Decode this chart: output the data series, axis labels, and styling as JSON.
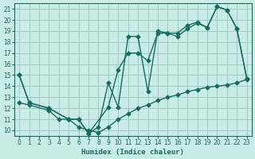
{
  "xlabel": "Humidex (Indice chaleur)",
  "xlim": [
    -0.5,
    23.5
  ],
  "ylim": [
    9.5,
    21.5
  ],
  "yticks": [
    10,
    11,
    12,
    13,
    14,
    15,
    16,
    17,
    18,
    19,
    20,
    21
  ],
  "xticks": [
    0,
    1,
    2,
    3,
    4,
    5,
    6,
    7,
    8,
    9,
    10,
    11,
    12,
    13,
    14,
    15,
    16,
    17,
    18,
    19,
    20,
    21,
    22,
    23
  ],
  "background_color": "#c8ece6",
  "grid_color": "#a0ccc6",
  "line_color": "#1a6b60",
  "line1_x": [
    0,
    1,
    3,
    5,
    6,
    7,
    8,
    9,
    10,
    11,
    12,
    13,
    14,
    15,
    16,
    17,
    18,
    19,
    20,
    21,
    22,
    23
  ],
  "line1_y": [
    15,
    12.5,
    12,
    11,
    11,
    9.7,
    10.3,
    14.3,
    12.1,
    18.5,
    18.5,
    13.5,
    19.0,
    18.8,
    18.8,
    19.5,
    19.8,
    19.3,
    21.2,
    20.9,
    19.2,
    14.7
  ],
  "line2_x": [
    0,
    1,
    3,
    5,
    6,
    7,
    9,
    10,
    11,
    12,
    13,
    14,
    15,
    16,
    17,
    18,
    19,
    20,
    21,
    22,
    23
  ],
  "line2_y": [
    15,
    12.5,
    12,
    11,
    11,
    9.7,
    12.1,
    15.5,
    17.0,
    17.0,
    16.3,
    18.8,
    18.8,
    18.5,
    19.2,
    19.7,
    19.3,
    21.2,
    20.9,
    19.2,
    14.7
  ],
  "line3_x": [
    0,
    1,
    3,
    4,
    5,
    6,
    7,
    8,
    9,
    10,
    11,
    12,
    13,
    14,
    15,
    16,
    17,
    18,
    19,
    20,
    21,
    22,
    23
  ],
  "line3_y": [
    12.5,
    12.3,
    11.8,
    11.0,
    11.0,
    10.3,
    10.0,
    9.8,
    10.3,
    11.0,
    11.5,
    12.0,
    12.3,
    12.7,
    13.0,
    13.2,
    13.5,
    13.7,
    13.9,
    14.0,
    14.1,
    14.3,
    14.6
  ],
  "marker_size": 2.5,
  "linewidth": 1.0
}
